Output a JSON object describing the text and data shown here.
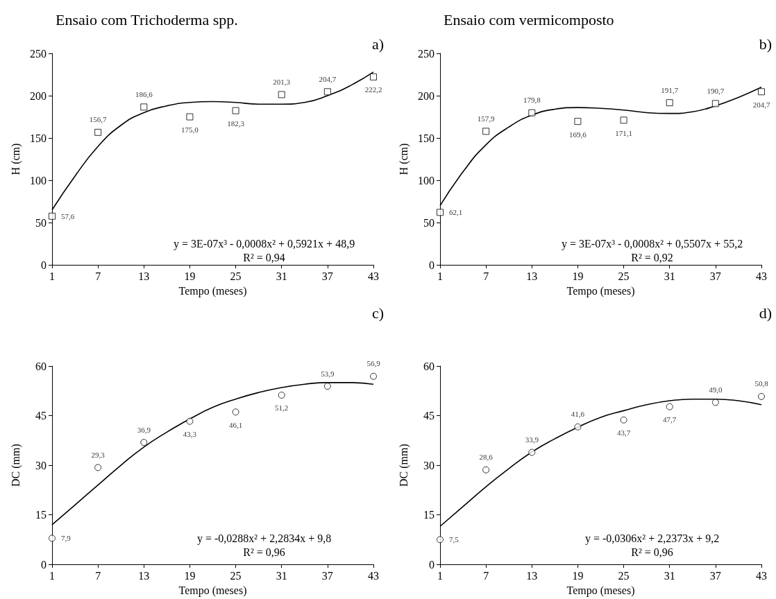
{
  "chart_data": [
    {
      "type": "scatter",
      "title": "Ensaio com Trichoderma spp.",
      "xlabel": "Tempo (meses)",
      "ylabel": "H (cm)",
      "xlim": [
        1,
        43
      ],
      "xticks": [
        1,
        7,
        13,
        19,
        25,
        31,
        37,
        43
      ],
      "ylim": [
        0,
        250
      ],
      "yticks": [
        0,
        50,
        100,
        150,
        200,
        250
      ],
      "grid": false,
      "annotations": [
        "a)",
        "y = 3E-07x³ - 0,0008x² + 0,5921x + 48,9",
        "R² = 0,94"
      ],
      "series": [
        {
          "marker": "square",
          "color": "#000000",
          "x": [
            1,
            7,
            13,
            19,
            25,
            31,
            37,
            43
          ],
          "values": [
            57.6,
            156.7,
            186.6,
            175.0,
            182.3,
            201.3,
            204.7,
            222.2
          ],
          "value_labels": [
            "57,6",
            "156,7",
            "186,6",
            "175,0",
            "182,3",
            "201,3",
            "204,7",
            "222,2"
          ]
        },
        {
          "type": "line",
          "color": "#000000",
          "line_style": "solid",
          "x": [
            1,
            4,
            7,
            10,
            13,
            16,
            19,
            22,
            25,
            28,
            31,
            34,
            37,
            40,
            43
          ],
          "values": [
            65,
            105,
            140,
            165,
            180,
            188,
            192,
            193,
            192,
            190,
            190,
            192,
            200,
            212,
            228
          ]
        }
      ]
    },
    {
      "type": "scatter",
      "title": "Ensaio com vermicomposto",
      "xlabel": "Tempo (meses)",
      "ylabel": "H (cm)",
      "xlim": [
        1,
        43
      ],
      "xticks": [
        1,
        7,
        13,
        19,
        25,
        31,
        37,
        43
      ],
      "ylim": [
        0,
        250
      ],
      "yticks": [
        0,
        50,
        100,
        150,
        200,
        250
      ],
      "grid": false,
      "annotations": [
        "b)",
        "y = 3E-07x³ - 0,0008x² + 0,5507x + 55,2",
        "R² = 0,92"
      ],
      "series": [
        {
          "marker": "square",
          "color": "#000000",
          "x": [
            1,
            7,
            13,
            19,
            25,
            31,
            37,
            43
          ],
          "values": [
            62.1,
            157.9,
            179.8,
            169.6,
            171.1,
            191.7,
            190.7,
            204.7
          ],
          "value_labels": [
            "62,1",
            "157,9",
            "179,8",
            "169,6",
            "171,1",
            "191,7",
            "190,7",
            "204,7"
          ]
        },
        {
          "type": "line",
          "color": "#000000",
          "line_style": "solid",
          "x": [
            1,
            4,
            7,
            10,
            13,
            16,
            19,
            22,
            25,
            28,
            31,
            34,
            37,
            40,
            43
          ],
          "values": [
            70,
            110,
            142,
            163,
            177,
            184,
            186,
            185,
            183,
            180,
            179,
            181,
            188,
            198,
            210
          ]
        }
      ]
    },
    {
      "type": "scatter",
      "xlabel": "Tempo (meses)",
      "ylabel": "DC (mm)",
      "xlim": [
        1,
        43
      ],
      "xticks": [
        1,
        7,
        13,
        19,
        25,
        31,
        37,
        43
      ],
      "ylim": [
        0,
        60
      ],
      "yticks": [
        0,
        15,
        30,
        45,
        60
      ],
      "grid": false,
      "annotations": [
        "c)",
        "y = -0,0288x² + 2,2834x + 9,8",
        "R² = 0,96"
      ],
      "series": [
        {
          "marker": "circle",
          "color": "#000000",
          "x": [
            1,
            7,
            13,
            19,
            25,
            31,
            37,
            43
          ],
          "values": [
            7.9,
            29.3,
            36.9,
            43.3,
            46.1,
            51.2,
            53.9,
            56.9
          ],
          "value_labels": [
            "7,9",
            "29,3",
            "36,9",
            "43,3",
            "46,1",
            "51,2",
            "53,9",
            "56,9"
          ]
        },
        {
          "type": "line",
          "color": "#000000",
          "line_style": "solid",
          "x": [
            1,
            4,
            7,
            10,
            13,
            16,
            19,
            22,
            25,
            28,
            31,
            34,
            37,
            40,
            43
          ],
          "values": [
            12,
            18,
            24,
            30,
            35.5,
            40,
            44,
            47.5,
            50,
            52,
            53.5,
            54.5,
            55,
            55,
            54.5
          ]
        }
      ]
    },
    {
      "type": "scatter",
      "xlabel": "Tempo (meses)",
      "ylabel": "DC (mm)",
      "xlim": [
        1,
        43
      ],
      "xticks": [
        1,
        7,
        13,
        19,
        25,
        31,
        37,
        43
      ],
      "ylim": [
        0,
        60
      ],
      "yticks": [
        0,
        15,
        30,
        45,
        60
      ],
      "grid": false,
      "annotations": [
        "d)",
        "y = -0,0306x² + 2,2373x + 9,2",
        "R² = 0,96"
      ],
      "series": [
        {
          "marker": "circle",
          "color": "#000000",
          "x": [
            1,
            7,
            13,
            19,
            25,
            31,
            37,
            43
          ],
          "values": [
            7.5,
            28.6,
            33.9,
            41.6,
            43.7,
            47.7,
            49.0,
            50.8
          ],
          "value_labels": [
            "7,5",
            "28,6",
            "33,9",
            "41,6",
            "43,7",
            "47,7",
            "49,0",
            "50,8"
          ]
        },
        {
          "type": "line",
          "color": "#000000",
          "line_style": "solid",
          "x": [
            1,
            4,
            7,
            10,
            13,
            16,
            19,
            22,
            25,
            28,
            31,
            34,
            37,
            40,
            43
          ],
          "values": [
            11.5,
            17.5,
            23.5,
            29,
            34,
            38,
            41.5,
            44.5,
            46.5,
            48.3,
            49.5,
            50,
            50,
            49.5,
            48.3
          ]
        }
      ]
    }
  ]
}
